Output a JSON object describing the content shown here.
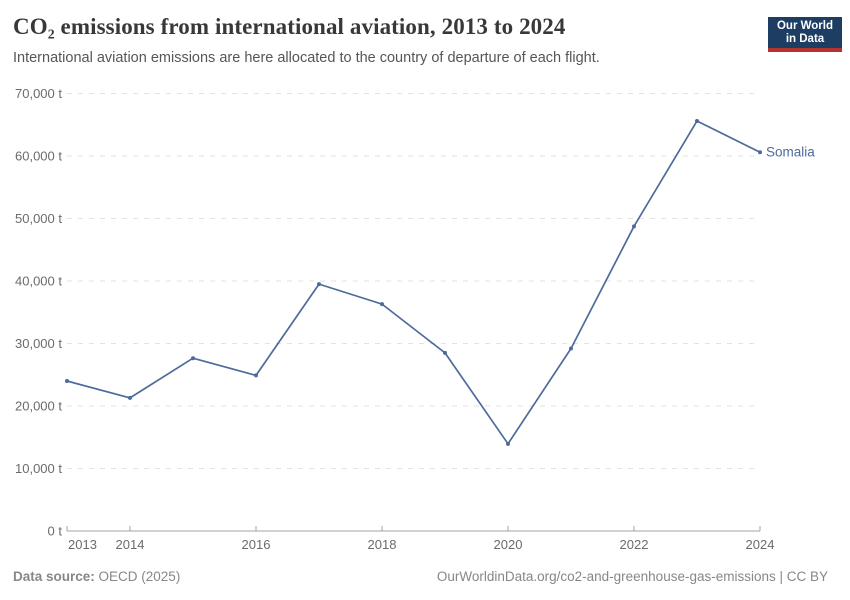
{
  "header": {
    "title": "CO₂ emissions from international aviation, 2013 to 2024",
    "subtitle": "International aviation emissions are here allocated to the country of departure of each flight."
  },
  "logo": {
    "line1": "Our World",
    "line2": "in Data",
    "bg_color": "#1d3d63",
    "bar_color": "#b5332e"
  },
  "chart_data": {
    "type": "line",
    "title": "CO₂ emissions from international aviation, 2013 to 2024",
    "unit": "t",
    "x": [
      2013,
      2014,
      2015,
      2016,
      2017,
      2018,
      2019,
      2020,
      2021,
      2022,
      2023,
      2024
    ],
    "series": [
      {
        "name": "Somalia",
        "color": "#4c6a9c",
        "values": [
          24000,
          21300,
          27650,
          24900,
          39500,
          36300,
          28500,
          13950,
          29200,
          48750,
          65600,
          60600
        ]
      }
    ],
    "ylim": [
      0,
      70000
    ],
    "y_ticks": [
      {
        "value": 0,
        "label": "0 t"
      },
      {
        "value": 10000,
        "label": "10,000 t"
      },
      {
        "value": 20000,
        "label": "20,000 t"
      },
      {
        "value": 30000,
        "label": "30,000 t"
      },
      {
        "value": 40000,
        "label": "40,000 t"
      },
      {
        "value": 50000,
        "label": "50,000 t"
      },
      {
        "value": 60000,
        "label": "60,000 t"
      },
      {
        "value": 70000,
        "label": "70,000 t"
      }
    ],
    "x_ticks": [
      2013,
      2014,
      2016,
      2018,
      2020,
      2022,
      2024
    ],
    "grid": "horizontal-dashed",
    "legend_position": "end-of-line-label",
    "grid_color": "#e2e2e2",
    "axis_color": "#a3a3a3",
    "tick_label_color": "#6b6b6b"
  },
  "footer": {
    "source_label": "Data source:",
    "source_text": " OECD (2025)",
    "credit": "OurWorldinData.org/co2-and-greenhouse-gas-emissions | CC BY"
  }
}
